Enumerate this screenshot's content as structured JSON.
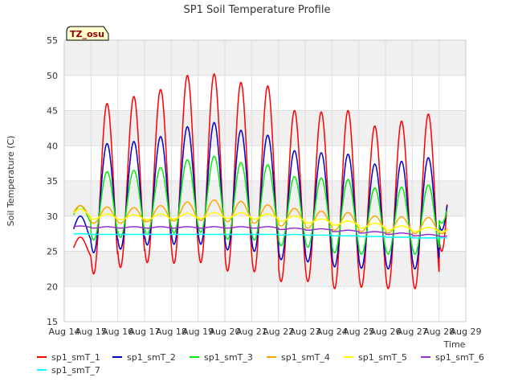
{
  "chart_data": {
    "type": "line",
    "title": "SP1 Soil Temperature Profile",
    "xlabel": "Time",
    "ylabel": "Soil Temperature (C)",
    "ylim": [
      15,
      55
    ],
    "yticks": [
      15,
      20,
      25,
      30,
      35,
      40,
      45,
      50,
      55
    ],
    "xlim": [
      "2024-08-14",
      "2024-08-29"
    ],
    "xticks": [
      "Aug 14",
      "Aug 15",
      "Aug 16",
      "Aug 17",
      "Aug 18",
      "Aug 19",
      "Aug 20",
      "Aug 21",
      "Aug 22",
      "Aug 23",
      "Aug 24",
      "Aug 25",
      "Aug 26",
      "Aug 27",
      "Aug 28",
      "Aug 29"
    ],
    "grid": true,
    "legend_position": "bottom",
    "annotation": "TZ_osu",
    "x_dates": [
      "Aug 14",
      "Aug 15",
      "Aug 16",
      "Aug 17",
      "Aug 18",
      "Aug 19",
      "Aug 20",
      "Aug 21",
      "Aug 22",
      "Aug 23",
      "Aug 24",
      "Aug 25",
      "Aug 26",
      "Aug 27",
      "Aug 28"
    ],
    "series": [
      {
        "name": "sp1_smT_1",
        "color": "#ff0000",
        "daily_max": [
          27.0,
          46.0,
          47.0,
          48.0,
          50.0,
          50.2,
          49.0,
          48.5,
          45.0,
          44.8,
          45.0,
          42.8,
          43.5,
          44.5,
          44.3
        ],
        "daily_min": [
          24.0,
          21.8,
          22.7,
          23.4,
          23.3,
          23.4,
          22.2,
          22.1,
          20.7,
          20.7,
          19.7,
          19.9,
          19.7,
          19.7,
          25.0
        ]
      },
      {
        "name": "sp1_smT_2",
        "color": "#0000cc",
        "daily_max": [
          30.0,
          40.3,
          40.6,
          41.3,
          42.7,
          43.3,
          42.2,
          41.5,
          39.3,
          39.0,
          38.8,
          37.4,
          37.8,
          38.3,
          38.2
        ],
        "daily_min": [
          26.3,
          24.8,
          25.3,
          25.9,
          26.0,
          26.0,
          25.2,
          25.0,
          23.8,
          23.5,
          22.8,
          22.6,
          22.5,
          22.5,
          28.0
        ]
      },
      {
        "name": "sp1_smT_3",
        "color": "#00ee00",
        "daily_max": [
          31.5,
          36.3,
          36.5,
          36.9,
          38.0,
          38.5,
          37.6,
          37.3,
          35.6,
          35.4,
          35.2,
          34.0,
          34.1,
          34.4,
          34.4
        ],
        "daily_min": [
          28.8,
          26.6,
          27.0,
          27.4,
          27.6,
          27.7,
          26.7,
          26.6,
          25.8,
          25.6,
          24.8,
          24.6,
          24.6,
          24.6,
          29.0
        ]
      },
      {
        "name": "sp1_smT_4",
        "color": "#ffa500",
        "daily_max": [
          31.5,
          31.3,
          31.2,
          31.5,
          32.0,
          32.3,
          32.1,
          31.6,
          31.1,
          30.7,
          30.5,
          30.0,
          29.9,
          29.8,
          29.7
        ],
        "daily_min": [
          29.5,
          29.0,
          29.0,
          29.2,
          29.3,
          29.4,
          29.2,
          29.0,
          28.6,
          28.3,
          28.0,
          27.8,
          27.6,
          27.5,
          27.5
        ]
      },
      {
        "name": "sp1_smT_5",
        "color": "#ffff00",
        "daily_max": [
          31.0,
          30.3,
          30.2,
          30.3,
          30.4,
          30.5,
          30.5,
          30.3,
          30.0,
          29.6,
          29.3,
          29.0,
          28.6,
          28.4,
          28.3
        ],
        "daily_min": [
          29.8,
          29.6,
          29.5,
          29.5,
          29.6,
          29.7,
          29.7,
          29.6,
          29.3,
          29.0,
          28.7,
          28.3,
          28.0,
          27.8,
          27.8
        ]
      },
      {
        "name": "sp1_smT_6",
        "color": "#9932cc",
        "daily_max": [
          28.6,
          28.5,
          28.5,
          28.5,
          28.5,
          28.5,
          28.5,
          28.5,
          28.3,
          28.2,
          28.0,
          27.8,
          27.6,
          27.4,
          27.3
        ],
        "daily_min": [
          28.4,
          28.3,
          28.3,
          28.3,
          28.3,
          28.3,
          28.3,
          28.3,
          28.1,
          28.0,
          27.8,
          27.6,
          27.4,
          27.2,
          27.1
        ]
      },
      {
        "name": "sp1_smT_7",
        "color": "#00ffff",
        "daily_max": [
          27.5,
          27.4,
          27.4,
          27.4,
          27.4,
          27.4,
          27.4,
          27.4,
          27.4,
          27.3,
          27.2,
          27.1,
          27.0,
          26.9,
          26.9
        ],
        "daily_min": [
          27.4,
          27.4,
          27.4,
          27.4,
          27.4,
          27.4,
          27.4,
          27.4,
          27.3,
          27.3,
          27.2,
          27.1,
          27.0,
          26.9,
          26.9
        ]
      }
    ]
  }
}
